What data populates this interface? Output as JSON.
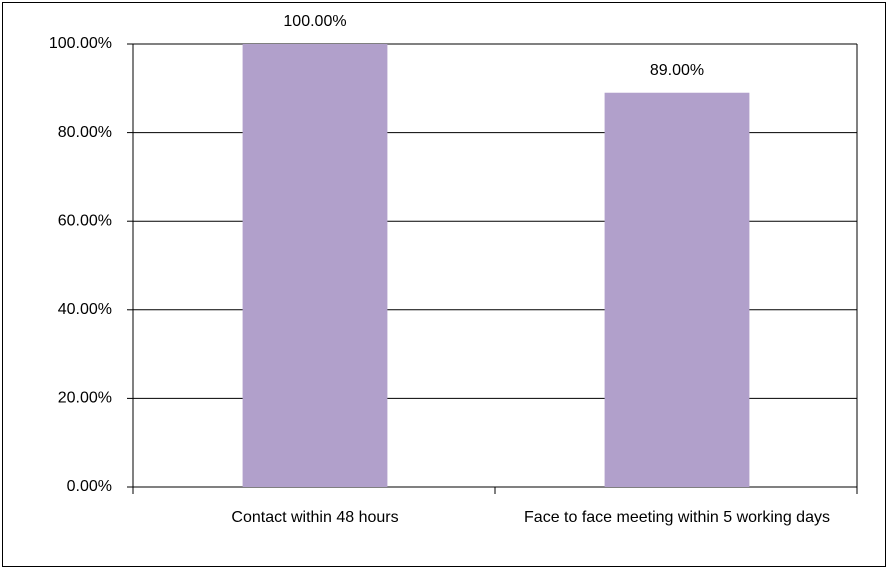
{
  "chart_data": {
    "type": "bar",
    "categories": [
      "Contact within 48 hours",
      "Face to face meeting within 5 working days"
    ],
    "values": [
      100,
      89
    ],
    "value_labels": [
      "100.00%",
      "89.00%"
    ],
    "color": "#b1a0cb",
    "ylim": [
      0,
      100
    ],
    "yticks": [
      {
        "value": 0,
        "label": "0.00%"
      },
      {
        "value": 20,
        "label": "20.00%"
      },
      {
        "value": 40,
        "label": "40.00%"
      },
      {
        "value": 60,
        "label": "60.00%"
      },
      {
        "value": 80,
        "label": "80.00%"
      },
      {
        "value": 100,
        "label": "100.00%"
      }
    ],
    "grid": true
  }
}
